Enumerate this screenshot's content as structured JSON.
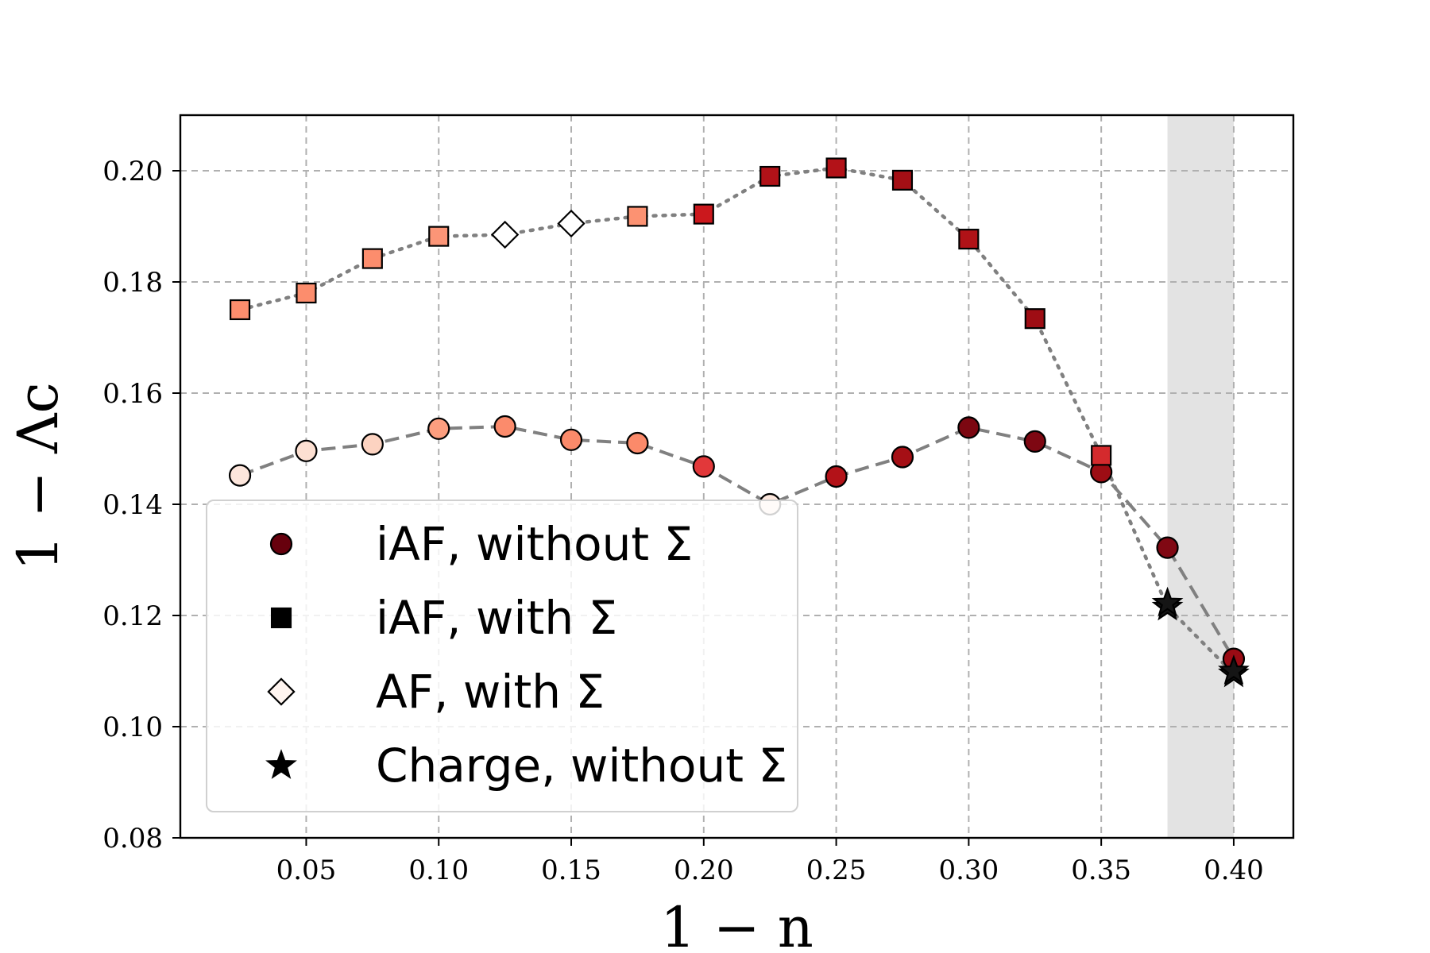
{
  "chart_data": {
    "type": "scatter",
    "xlabel": "1 − n",
    "ylabel": "1 − Λc",
    "xlim": [
      0.0025,
      0.4225
    ],
    "ylim": [
      0.08,
      0.21
    ],
    "xticks": [
      0.05,
      0.1,
      0.15,
      0.2,
      0.25,
      0.3,
      0.35,
      0.4
    ],
    "xtick_labels": [
      "0.05",
      "0.10",
      "0.15",
      "0.20",
      "0.25",
      "0.30",
      "0.35",
      "0.40"
    ],
    "yticks": [
      0.08,
      0.1,
      0.12,
      0.14,
      0.16,
      0.18,
      0.2
    ],
    "ytick_labels": [
      "0.08",
      "0.10",
      "0.12",
      "0.14",
      "0.16",
      "0.18",
      "0.20"
    ],
    "grid": true,
    "legend_position": "lower-left",
    "shaded_region": [
      0.375,
      0.4
    ],
    "line_color": "#808080",
    "legend": [
      {
        "label": "iAF, without Σ",
        "marker": "circle"
      },
      {
        "label": "iAF, with Σ",
        "marker": "square"
      },
      {
        "label": "AF, with Σ",
        "marker": "diamond"
      },
      {
        "label": "Charge, without Σ",
        "marker": "star"
      }
    ],
    "series": [
      {
        "key": "without_sigma",
        "line_style": "dashed",
        "x": [
          0.025,
          0.05,
          0.075,
          0.1,
          0.125,
          0.15,
          0.175,
          0.2,
          0.225,
          0.25,
          0.275,
          0.3,
          0.325,
          0.35,
          0.375,
          0.4
        ],
        "y": [
          0.1452,
          0.1496,
          0.1508,
          0.1536,
          0.154,
          0.1516,
          0.151,
          0.1468,
          0.14,
          0.145,
          0.1485,
          0.1538,
          0.1513,
          0.1458,
          0.1322,
          0.1122
        ],
        "markers": [
          "circle",
          "circle",
          "circle",
          "circle",
          "circle",
          "circle",
          "circle",
          "circle",
          "circle",
          "circle",
          "circle",
          "circle",
          "circle",
          "circle",
          "circle",
          "circle"
        ],
        "colors": [
          "#fde6dc",
          "#fde0d2",
          "#fcd3c1",
          "#fc9e7f",
          "#fb8b6c",
          "#fb8a6a",
          "#fb8a6a",
          "#e2383a",
          "#fde8de",
          "#b31218",
          "#a50f15",
          "#7c0711",
          "#7e0712",
          "#9d0d14",
          "#800813",
          "#9a0b14"
        ]
      },
      {
        "key": "with_sigma",
        "line_style": "dotted",
        "x": [
          0.025,
          0.05,
          0.075,
          0.1,
          0.125,
          0.15,
          0.175,
          0.2,
          0.225,
          0.25,
          0.275,
          0.3,
          0.325,
          0.35,
          0.375,
          0.4
        ],
        "y": [
          0.175,
          0.178,
          0.1842,
          0.1882,
          0.1885,
          0.1905,
          0.1918,
          0.1922,
          0.199,
          0.2005,
          0.1983,
          0.1877,
          0.1734,
          0.1488,
          0.1215,
          0.1095
        ],
        "markers": [
          "square",
          "square",
          "square",
          "square",
          "diamond",
          "diamond",
          "square",
          "square",
          "square",
          "square",
          "square",
          "square",
          "square",
          "square",
          "star",
          "star"
        ],
        "colors": [
          "#fc8d6d",
          "#fc8d6d",
          "#fc8d6d",
          "#fc9577",
          "#ffffff",
          "#ffffff",
          "#fc9272",
          "#cb181d",
          "#b11218",
          "#b31218",
          "#a50f15",
          "#b01217",
          "#9e0d14",
          "#d42a2d",
          "#151515",
          "#151515"
        ]
      },
      {
        "key": "charge_without_sigma",
        "line_style": "none",
        "x": [
          0.375,
          0.4
        ],
        "y": [
          0.1222,
          0.11
        ],
        "markers": [
          "star",
          "star"
        ],
        "colors": [
          "#151515",
          "#151515"
        ]
      }
    ]
  }
}
